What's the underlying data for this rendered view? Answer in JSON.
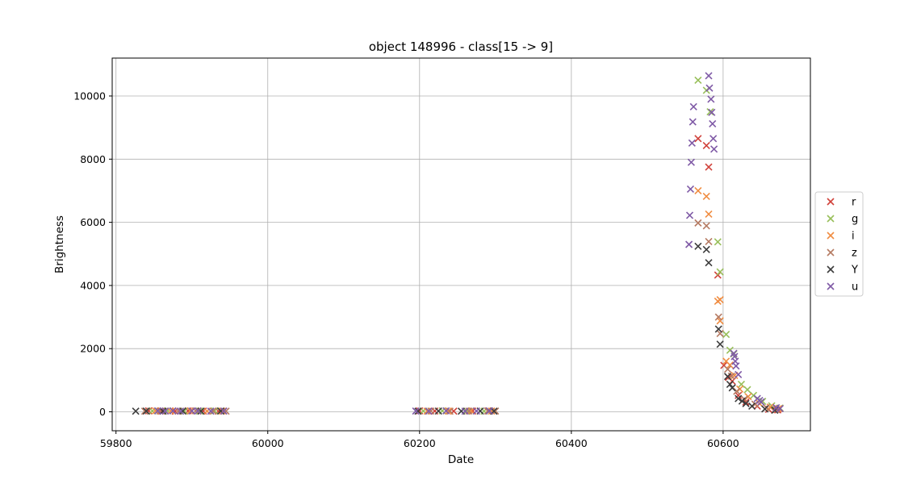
{
  "chart_data": {
    "type": "scatter",
    "title": "object 148996 - class[15 -> 9]",
    "xlabel": "Date",
    "ylabel": "Brightness",
    "xlim": [
      59795,
      60715
    ],
    "ylim": [
      -600,
      11200
    ],
    "xticks": [
      59800,
      60000,
      60200,
      60400,
      60600
    ],
    "yticks": [
      0,
      2000,
      4000,
      6000,
      8000,
      10000
    ],
    "grid": true,
    "marker": "x",
    "legend_position": "right",
    "series": [
      {
        "name": "r",
        "color": "#d0413a",
        "points": [
          [
            59843,
            30
          ],
          [
            59860,
            25
          ],
          [
            59878,
            20
          ],
          [
            59895,
            30
          ],
          [
            59915,
            25
          ],
          [
            59935,
            20
          ],
          [
            60200,
            30
          ],
          [
            60220,
            25
          ],
          [
            60245,
            20
          ],
          [
            60270,
            25
          ],
          [
            60290,
            30
          ],
          [
            60567,
            8650
          ],
          [
            60578,
            8430
          ],
          [
            60581,
            7750
          ],
          [
            60593,
            4330
          ],
          [
            60601,
            1470
          ],
          [
            60607,
            1090
          ],
          [
            60612,
            970
          ],
          [
            60620,
            520
          ],
          [
            60630,
            310
          ],
          [
            60645,
            180
          ],
          [
            60660,
            80
          ],
          [
            60672,
            60
          ]
        ]
      },
      {
        "name": "g",
        "color": "#98bf5a",
        "points": [
          [
            59848,
            25
          ],
          [
            59868,
            30
          ],
          [
            59890,
            20
          ],
          [
            59910,
            25
          ],
          [
            59930,
            30
          ],
          [
            60205,
            25
          ],
          [
            60230,
            30
          ],
          [
            60262,
            25
          ],
          [
            60285,
            20
          ],
          [
            60567,
            10500
          ],
          [
            60578,
            10180
          ],
          [
            60583,
            9500
          ],
          [
            60593,
            5380
          ],
          [
            60596,
            4430
          ],
          [
            60604,
            2450
          ],
          [
            60609,
            1950
          ],
          [
            60614,
            1830
          ],
          [
            60624,
            870
          ],
          [
            60632,
            700
          ],
          [
            60640,
            520
          ],
          [
            60652,
            330
          ],
          [
            60664,
            190
          ],
          [
            60675,
            120
          ]
        ]
      },
      {
        "name": "i",
        "color": "#f08d42",
        "points": [
          [
            59852,
            30
          ],
          [
            59872,
            25
          ],
          [
            59898,
            30
          ],
          [
            59920,
            20
          ],
          [
            59940,
            25
          ],
          [
            60210,
            20
          ],
          [
            60238,
            25
          ],
          [
            60268,
            30
          ],
          [
            60295,
            25
          ],
          [
            60567,
            7000
          ],
          [
            60578,
            6820
          ],
          [
            60581,
            6260
          ],
          [
            60593,
            3500
          ],
          [
            60596,
            3550
          ],
          [
            60596,
            2880
          ],
          [
            60604,
            1600
          ],
          [
            60609,
            1480
          ],
          [
            60615,
            1150
          ],
          [
            60622,
            720
          ],
          [
            60633,
            480
          ],
          [
            60648,
            260
          ],
          [
            60662,
            150
          ],
          [
            60673,
            100
          ]
        ]
      },
      {
        "name": "z",
        "color": "#b57a62",
        "points": [
          [
            59838,
            20
          ],
          [
            59858,
            25
          ],
          [
            59882,
            20
          ],
          [
            59905,
            30
          ],
          [
            59928,
            25
          ],
          [
            59945,
            20
          ],
          [
            60215,
            25
          ],
          [
            60240,
            20
          ],
          [
            60265,
            25
          ],
          [
            60290,
            20
          ],
          [
            60300,
            25
          ],
          [
            60567,
            5980
          ],
          [
            60578,
            5890
          ],
          [
            60581,
            5390
          ],
          [
            60594,
            3000
          ],
          [
            60596,
            2480
          ],
          [
            60606,
            1350
          ],
          [
            60611,
            1130
          ],
          [
            60618,
            650
          ],
          [
            60628,
            400
          ],
          [
            60642,
            240
          ],
          [
            60657,
            130
          ],
          [
            60670,
            70
          ]
        ]
      },
      {
        "name": "Y",
        "color": "#3c3c3c",
        "points": [
          [
            59826,
            20
          ],
          [
            59840,
            25
          ],
          [
            59862,
            20
          ],
          [
            59888,
            25
          ],
          [
            59912,
            20
          ],
          [
            59938,
            25
          ],
          [
            60198,
            20
          ],
          [
            60225,
            25
          ],
          [
            60255,
            20
          ],
          [
            60280,
            25
          ],
          [
            60298,
            20
          ],
          [
            60567,
            5240
          ],
          [
            60578,
            5140
          ],
          [
            60581,
            4720
          ],
          [
            60594,
            2620
          ],
          [
            60596,
            2140
          ],
          [
            60606,
            1120
          ],
          [
            60609,
            870
          ],
          [
            60612,
            760
          ],
          [
            60620,
            420
          ],
          [
            60625,
            340
          ],
          [
            60630,
            260
          ],
          [
            60638,
            180
          ],
          [
            60655,
            90
          ],
          [
            60668,
            50
          ]
        ]
      },
      {
        "name": "u",
        "color": "#7f5aa6",
        "points": [
          [
            59855,
            30
          ],
          [
            59865,
            25
          ],
          [
            59875,
            30
          ],
          [
            59885,
            20
          ],
          [
            59900,
            25
          ],
          [
            59908,
            30
          ],
          [
            59925,
            20
          ],
          [
            59942,
            25
          ],
          [
            60195,
            25
          ],
          [
            60212,
            20
          ],
          [
            60235,
            30
          ],
          [
            60260,
            20
          ],
          [
            60275,
            25
          ],
          [
            60292,
            30
          ],
          [
            60555,
            5300
          ],
          [
            60556,
            6220
          ],
          [
            60557,
            7050
          ],
          [
            60558,
            7900
          ],
          [
            60559,
            8510
          ],
          [
            60560,
            9180
          ],
          [
            60561,
            9660
          ],
          [
            60581,
            10640
          ],
          [
            60582,
            10250
          ],
          [
            60584,
            9900
          ],
          [
            60585,
            9480
          ],
          [
            60586,
            9120
          ],
          [
            60587,
            8650
          ],
          [
            60588,
            8320
          ],
          [
            60614,
            1850
          ],
          [
            60615,
            1750
          ],
          [
            60616,
            1600
          ],
          [
            60617,
            1450
          ],
          [
            60620,
            1180
          ],
          [
            60645,
            420
          ],
          [
            60648,
            360
          ],
          [
            60650,
            310
          ],
          [
            60670,
            130
          ],
          [
            60675,
            100
          ]
        ]
      }
    ]
  }
}
